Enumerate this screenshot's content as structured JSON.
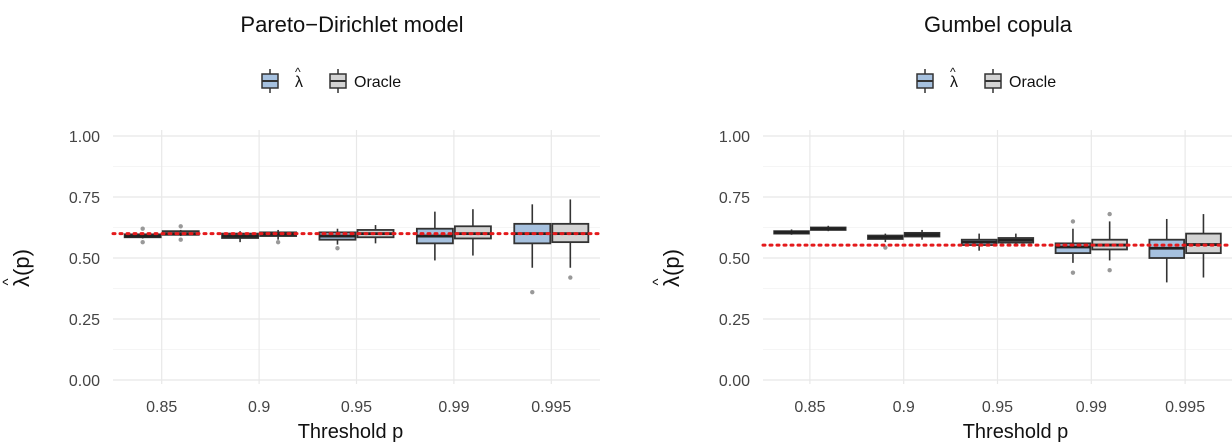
{
  "chart_data": [
    {
      "type": "boxplot",
      "title": "Pareto−Dirichlet model",
      "xlabel": "Threshold p",
      "ylabel": "λ̂(p)",
      "ylabel_main": "λ",
      "ylabel_hat": "^",
      "ylabel_suffix": "(p)",
      "ylim": [
        0,
        1
      ],
      "yticks": [
        "0.00",
        "0.25",
        "0.50",
        "0.75",
        "1.00"
      ],
      "grid": true,
      "legend_position": "top",
      "categories": [
        "0.85",
        "0.9",
        "0.95",
        "0.99",
        "0.995"
      ],
      "reference_line": {
        "value": 0.6,
        "color": "#e41a1c",
        "style": "dotted"
      },
      "series": [
        {
          "name": "λ̂",
          "color": "#a6c1df",
          "boxes": [
            {
              "lower": 0.58,
              "q1": 0.585,
              "median": 0.59,
              "q3": 0.597,
              "upper": 0.605,
              "outliers": [
                0.565,
                0.62
              ]
            },
            {
              "lower": 0.565,
              "q1": 0.582,
              "median": 0.59,
              "q3": 0.6,
              "upper": 0.61,
              "outliers": []
            },
            {
              "lower": 0.555,
              "q1": 0.575,
              "median": 0.59,
              "q3": 0.605,
              "upper": 0.62,
              "outliers": [
                0.54
              ]
            },
            {
              "lower": 0.49,
              "q1": 0.56,
              "median": 0.59,
              "q3": 0.62,
              "upper": 0.69,
              "outliers": []
            },
            {
              "lower": 0.46,
              "q1": 0.56,
              "median": 0.6,
              "q3": 0.64,
              "upper": 0.72,
              "outliers": [
                0.36
              ]
            }
          ]
        },
        {
          "name": "Oracle",
          "color": "#d3d3d3",
          "boxes": [
            {
              "lower": 0.59,
              "q1": 0.595,
              "median": 0.6,
              "q3": 0.61,
              "upper": 0.615,
              "outliers": [
                0.575,
                0.63
              ]
            },
            {
              "lower": 0.575,
              "q1": 0.59,
              "median": 0.598,
              "q3": 0.605,
              "upper": 0.615,
              "outliers": [
                0.565
              ]
            },
            {
              "lower": 0.56,
              "q1": 0.585,
              "median": 0.6,
              "q3": 0.615,
              "upper": 0.635,
              "outliers": []
            },
            {
              "lower": 0.51,
              "q1": 0.58,
              "median": 0.6,
              "q3": 0.63,
              "upper": 0.7,
              "outliers": []
            },
            {
              "lower": 0.46,
              "q1": 0.565,
              "median": 0.6,
              "q3": 0.64,
              "upper": 0.74,
              "outliers": [
                0.42
              ]
            }
          ]
        }
      ]
    },
    {
      "type": "boxplot",
      "title": "Gumbel copula",
      "xlabel": "Threshold p",
      "ylabel": "λ̂(p)",
      "ylabel_main": "λ",
      "ylabel_hat": "^",
      "ylabel_suffix": "(p)",
      "ylim": [
        0,
        1
      ],
      "yticks": [
        "0.00",
        "0.25",
        "0.50",
        "0.75",
        "1.00"
      ],
      "grid": true,
      "legend_position": "top",
      "categories": [
        "0.85",
        "0.9",
        "0.95",
        "0.99",
        "0.995"
      ],
      "reference_line": {
        "value": 0.553,
        "color": "#e41a1c",
        "style": "dotted"
      },
      "series": [
        {
          "name": "λ̂",
          "color": "#a6c1df",
          "boxes": [
            {
              "lower": 0.595,
              "q1": 0.6,
              "median": 0.605,
              "q3": 0.61,
              "upper": 0.617,
              "outliers": []
            },
            {
              "lower": 0.565,
              "q1": 0.578,
              "median": 0.585,
              "q3": 0.592,
              "upper": 0.6,
              "outliers": [
                0.543
              ]
            },
            {
              "lower": 0.53,
              "q1": 0.553,
              "median": 0.565,
              "q3": 0.575,
              "upper": 0.6,
              "outliers": []
            },
            {
              "lower": 0.48,
              "q1": 0.52,
              "median": 0.545,
              "q3": 0.56,
              "upper": 0.62,
              "outliers": [
                0.44,
                0.65
              ]
            },
            {
              "lower": 0.4,
              "q1": 0.5,
              "median": 0.54,
              "q3": 0.575,
              "upper": 0.66,
              "outliers": []
            }
          ]
        },
        {
          "name": "Oracle",
          "color": "#d3d3d3",
          "boxes": [
            {
              "lower": 0.61,
              "q1": 0.615,
              "median": 0.62,
              "q3": 0.625,
              "upper": 0.632,
              "outliers": []
            },
            {
              "lower": 0.575,
              "q1": 0.588,
              "median": 0.595,
              "q3": 0.603,
              "upper": 0.615,
              "outliers": []
            },
            {
              "lower": 0.55,
              "q1": 0.563,
              "median": 0.573,
              "q3": 0.582,
              "upper": 0.6,
              "outliers": []
            },
            {
              "lower": 0.49,
              "q1": 0.535,
              "median": 0.553,
              "q3": 0.575,
              "upper": 0.65,
              "outliers": [
                0.45,
                0.68
              ]
            },
            {
              "lower": 0.42,
              "q1": 0.52,
              "median": 0.555,
              "q3": 0.6,
              "upper": 0.68,
              "outliers": []
            }
          ]
        }
      ]
    }
  ]
}
